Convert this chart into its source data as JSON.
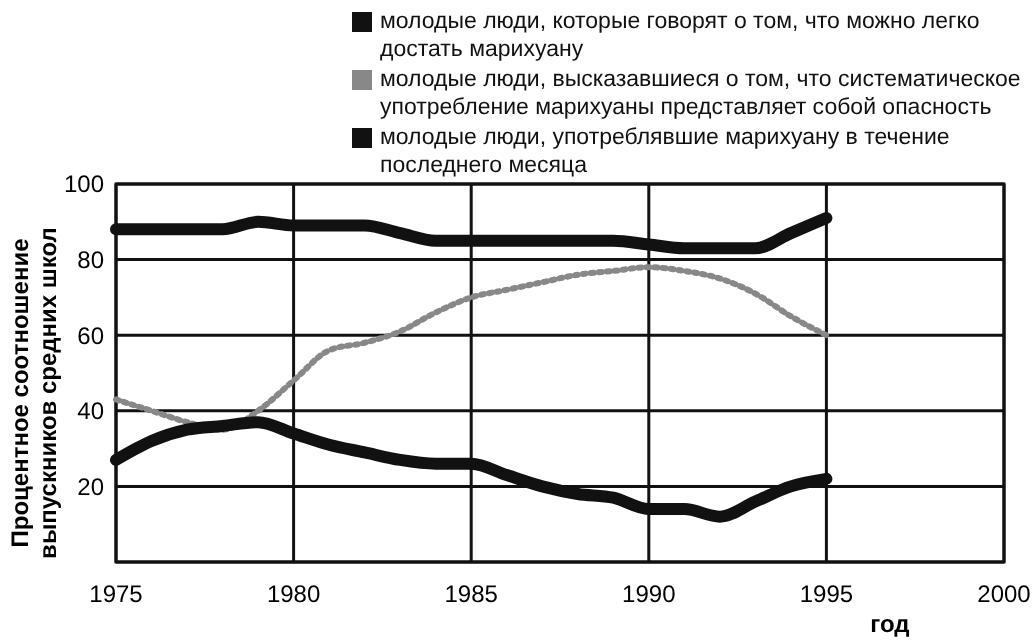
{
  "chart_data": {
    "type": "line",
    "xlabel": "год",
    "ylabel": "Процентное соотношение выпускников средних школ",
    "x": [
      1975,
      1976,
      1977,
      1978,
      1979,
      1980,
      1981,
      1982,
      1983,
      1984,
      1985,
      1986,
      1987,
      1988,
      1989,
      1990,
      1991,
      1992,
      1993,
      1994,
      1995
    ],
    "xlim": [
      1975,
      2000
    ],
    "xticks": [
      1975,
      1980,
      1985,
      1990,
      1995,
      2000
    ],
    "ylim": [
      0,
      100
    ],
    "yticks": [
      {
        "value": 0,
        "label": null
      },
      20,
      40,
      60,
      80,
      100
    ],
    "grid": true,
    "legend": "top",
    "series": [
      {
        "name": "молодые люди, которые говорят о том, что можно легко достать марихуану",
        "color": "#111111",
        "values": [
          88,
          88,
          88,
          88,
          90,
          89,
          89,
          89,
          87,
          85,
          85,
          85,
          85,
          85,
          85,
          84,
          83,
          83,
          83,
          87,
          91
        ]
      },
      {
        "name": "молодые люди, высказавшиеся о том, что систематическое употребление марихуаны представляет собой опасность",
        "color": "#888888",
        "line_style": "dotted",
        "values": [
          43,
          40,
          37,
          35,
          40,
          48,
          56,
          58,
          61,
          66,
          70,
          72,
          74,
          76,
          77,
          78,
          77,
          75,
          71,
          65,
          60
        ]
      },
      {
        "name": "молодые люди, употреблявшие марихуану в течение последнего месяца",
        "color": "#111111",
        "values": [
          27,
          32,
          35,
          36,
          37,
          34,
          31,
          29,
          27,
          26,
          26,
          23,
          20,
          18,
          17,
          14,
          14,
          12,
          16,
          20,
          22
        ]
      }
    ]
  }
}
